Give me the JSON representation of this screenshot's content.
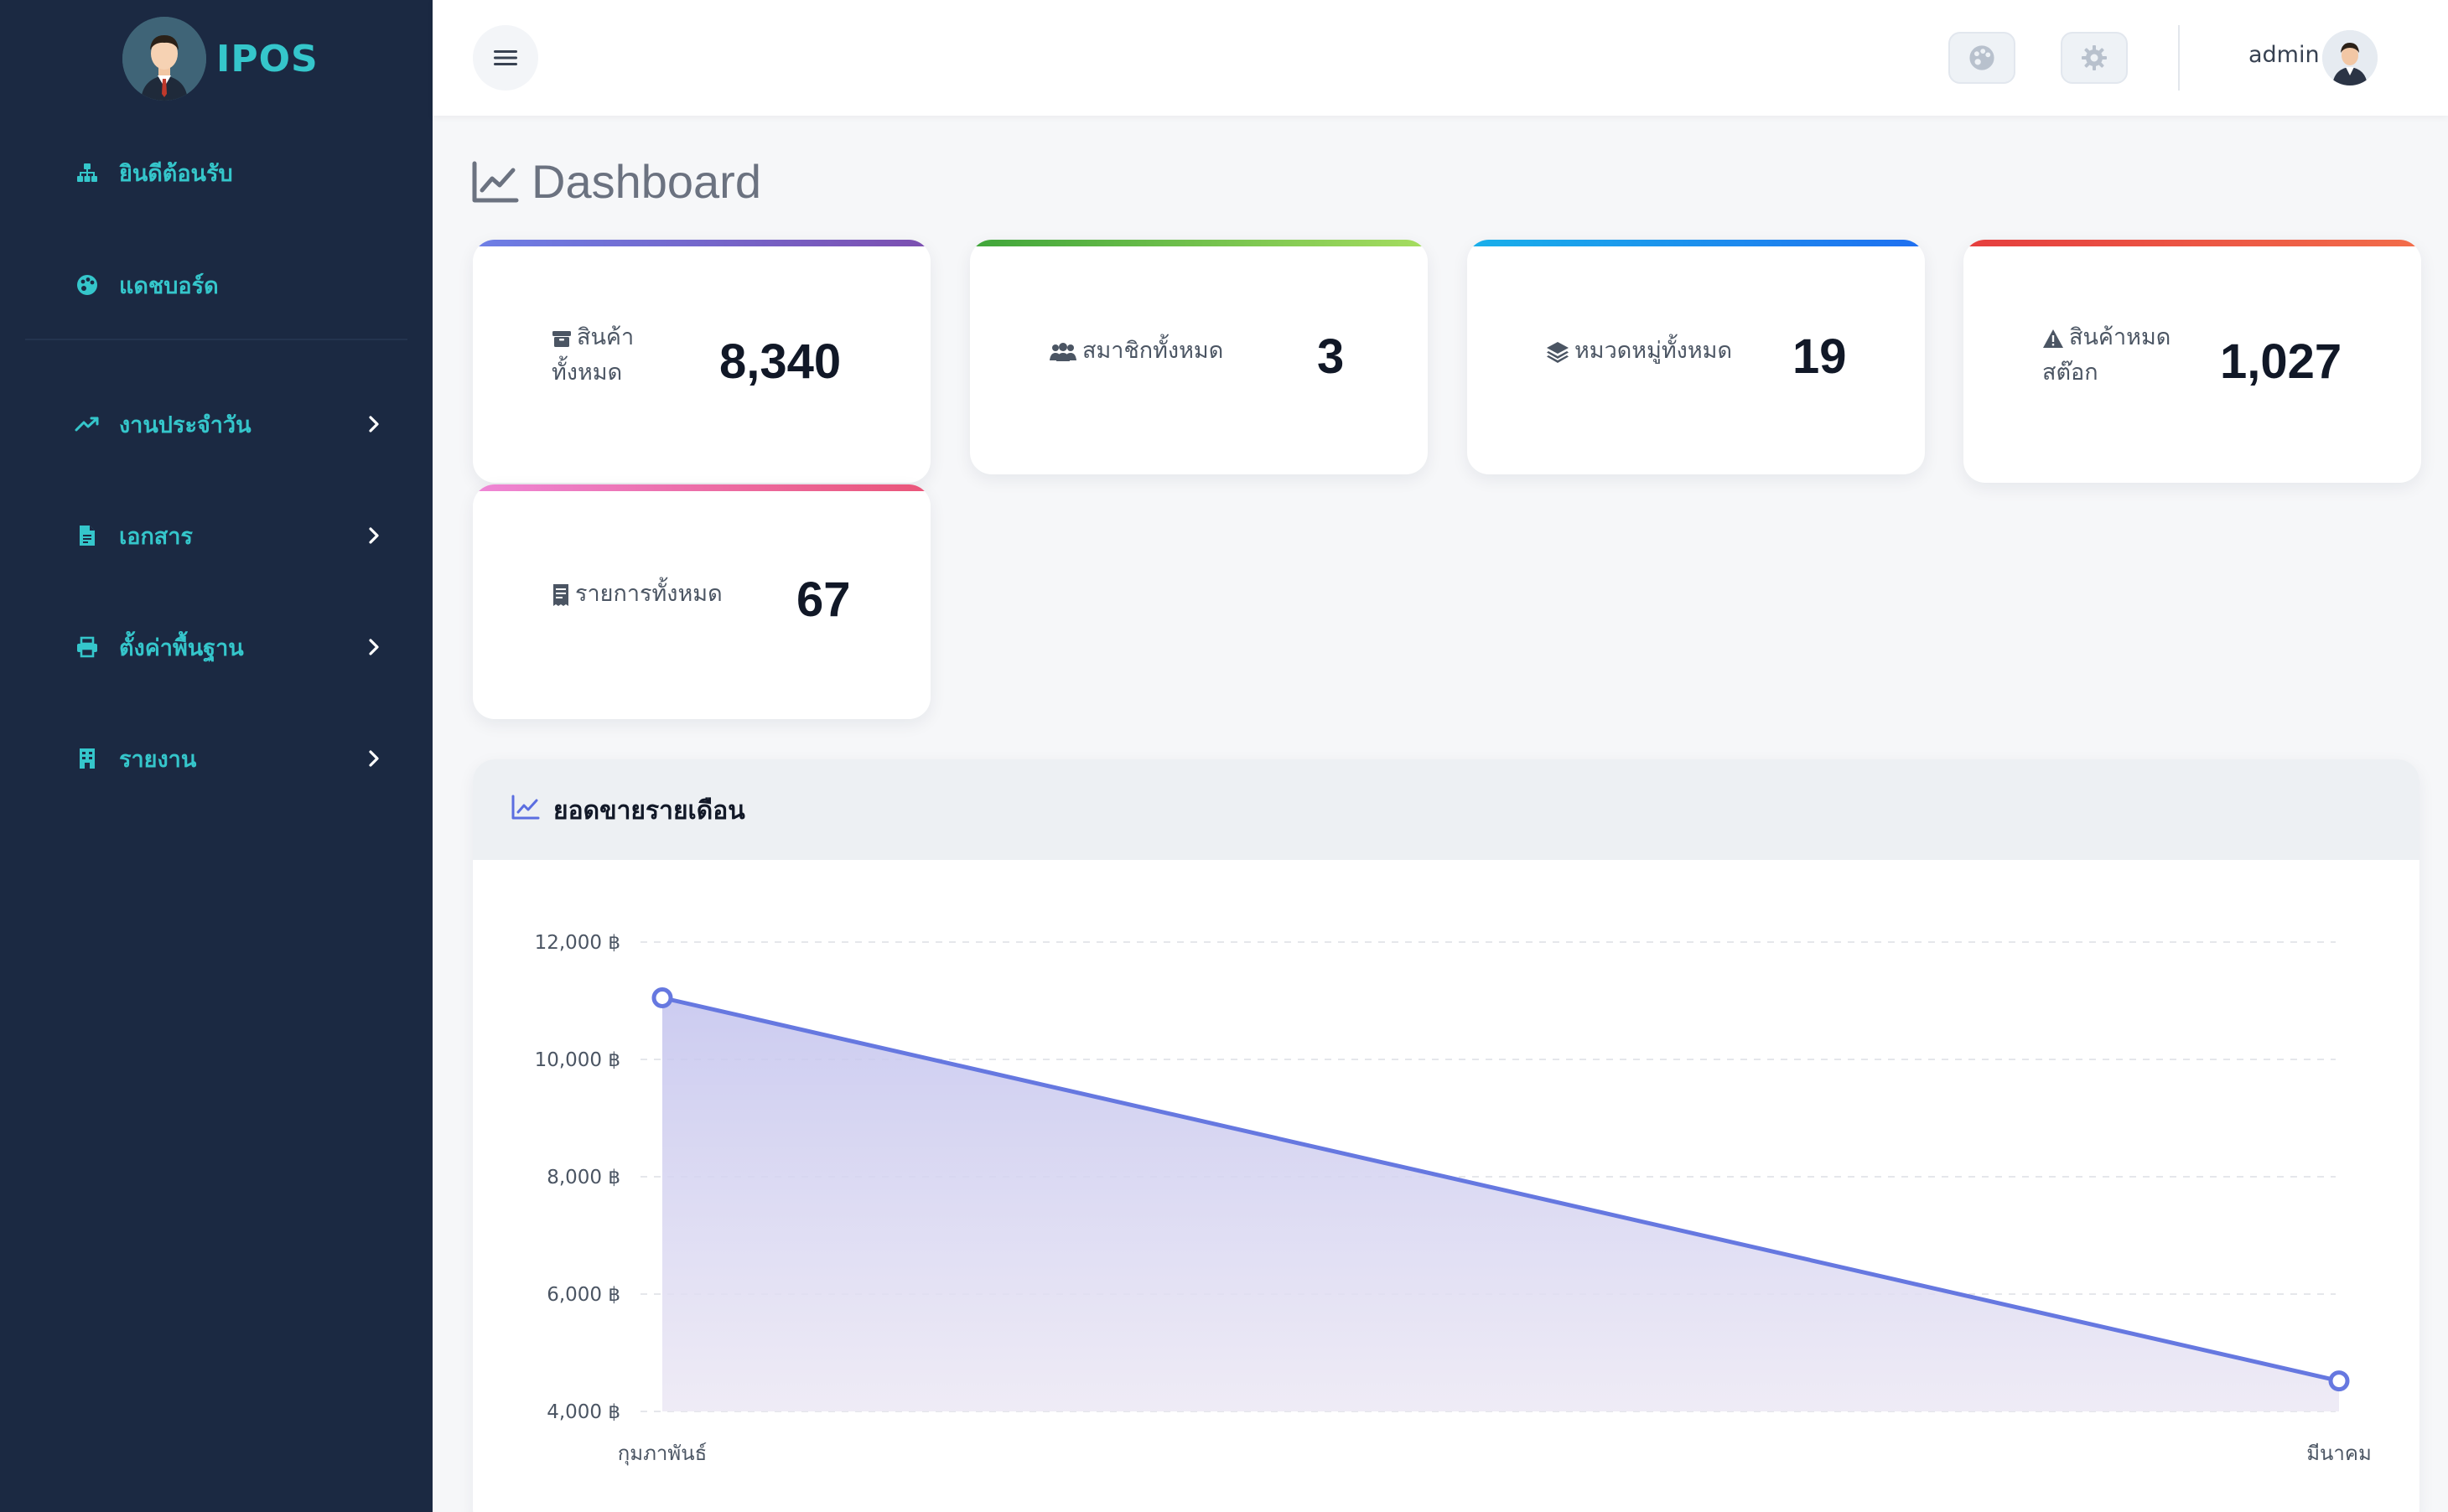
{
  "brand": {
    "name": "IPOS"
  },
  "sidebar": {
    "items": [
      {
        "label": "ยินดีต้อนรับ",
        "icon": "sitemap-icon"
      },
      {
        "label": "แดชบอร์ด",
        "icon": "palette-icon"
      },
      {
        "label": "งานประจำวัน",
        "icon": "trend-icon"
      },
      {
        "label": "เอกสาร",
        "icon": "file-icon"
      },
      {
        "label": "ตั้งค่าพื้นฐาน",
        "icon": "printer-icon"
      },
      {
        "label": "รายงาน",
        "icon": "building-icon"
      }
    ]
  },
  "topbar": {
    "user": "admin"
  },
  "page": {
    "title": "Dashboard"
  },
  "stats": [
    {
      "label": "สินค้า ทั้งหมด",
      "value": "8,340",
      "icon": "box-icon"
    },
    {
      "label": "สมาชิกทั้งหมด",
      "value": "3",
      "icon": "users-icon"
    },
    {
      "label": "หมวดหมู่ทั้งหมด",
      "value": "19",
      "icon": "layers-icon"
    },
    {
      "label": "สินค้าหมด สต๊อก",
      "value": "1,027",
      "icon": "warning-icon"
    },
    {
      "label": "รายการทั้งหมด",
      "value": "67",
      "icon": "receipt-icon"
    }
  ],
  "chart": {
    "title": "ยอดขายรายเดือน"
  },
  "colors": {
    "sidebar": "#1b2942",
    "accent": "#35c6cb",
    "line": "#6678e0"
  },
  "chart_data": {
    "type": "area",
    "title": "ยอดขายรายเดือน",
    "categories": [
      "กุมภาพันธ์",
      "มีนาคม"
    ],
    "series": [
      {
        "name": "ยอดขาย",
        "values": [
          11050,
          4520
        ]
      }
    ],
    "yticks": [
      "4,000 ฿",
      "6,000 ฿",
      "8,000 ฿",
      "10,000 ฿",
      "12,000 ฿"
    ],
    "ylim": [
      4000,
      12000
    ],
    "xlabel": "",
    "ylabel": "",
    "grid": true
  }
}
